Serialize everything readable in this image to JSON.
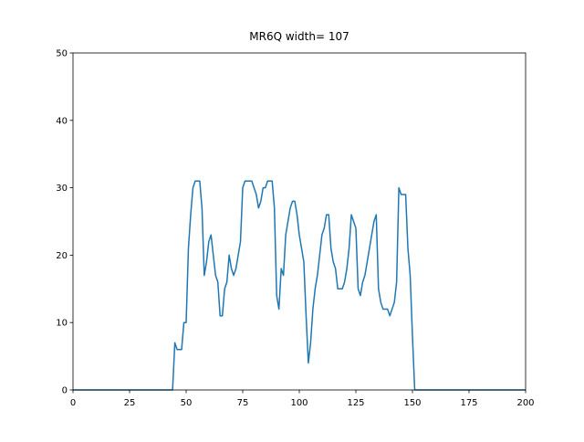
{
  "chart_data": {
    "type": "line",
    "title": "MR6Q width= 107",
    "x": [
      0,
      1,
      2,
      3,
      4,
      5,
      6,
      7,
      8,
      9,
      10,
      11,
      12,
      13,
      14,
      15,
      16,
      17,
      18,
      19,
      20,
      21,
      22,
      23,
      24,
      25,
      26,
      27,
      28,
      29,
      30,
      31,
      32,
      33,
      34,
      35,
      36,
      37,
      38,
      39,
      40,
      41,
      42,
      43,
      44,
      45,
      46,
      47,
      48,
      49,
      50,
      51,
      52,
      53,
      54,
      55,
      56,
      57,
      58,
      59,
      60,
      61,
      62,
      63,
      64,
      65,
      66,
      67,
      68,
      69,
      70,
      71,
      72,
      73,
      74,
      75,
      76,
      77,
      78,
      79,
      80,
      81,
      82,
      83,
      84,
      85,
      86,
      87,
      88,
      89,
      90,
      91,
      92,
      93,
      94,
      95,
      96,
      97,
      98,
      99,
      100,
      101,
      102,
      103,
      104,
      105,
      106,
      107,
      108,
      109,
      110,
      111,
      112,
      113,
      114,
      115,
      116,
      117,
      118,
      119,
      120,
      121,
      122,
      123,
      124,
      125,
      126,
      127,
      128,
      129,
      130,
      131,
      132,
      133,
      134,
      135,
      136,
      137,
      138,
      139,
      140,
      141,
      142,
      143,
      144,
      145,
      146,
      147,
      148,
      149,
      150,
      151,
      152,
      153,
      154,
      155,
      156,
      157,
      158,
      159,
      160,
      161,
      162,
      163,
      164,
      165,
      166,
      167,
      168,
      169,
      170,
      171,
      172,
      173,
      174,
      175,
      176,
      177,
      178,
      179,
      180,
      181,
      182,
      183,
      184,
      185,
      186,
      187,
      188,
      189,
      190,
      191,
      192,
      193,
      194,
      195,
      196,
      197,
      198,
      199,
      200
    ],
    "series": [
      {
        "color": "#1f77b4",
        "values": [
          0,
          0,
          0,
          0,
          0,
          0,
          0,
          0,
          0,
          0,
          0,
          0,
          0,
          0,
          0,
          0,
          0,
          0,
          0,
          0,
          0,
          0,
          0,
          0,
          0,
          0,
          0,
          0,
          0,
          0,
          0,
          0,
          0,
          0,
          0,
          0,
          0,
          0,
          0,
          0,
          0,
          0,
          0,
          0,
          0,
          7,
          6,
          6,
          6,
          10,
          10,
          21,
          26,
          30,
          31,
          31,
          31,
          27,
          17,
          19,
          22,
          23,
          20,
          17,
          16,
          11,
          11,
          15,
          16,
          20,
          18,
          17,
          18,
          20,
          22,
          30,
          31,
          31,
          31,
          31,
          30,
          29,
          27,
          28,
          30,
          30,
          31,
          31,
          31,
          27,
          14,
          12,
          18,
          17,
          23,
          25,
          27,
          28,
          28,
          26,
          23,
          21,
          19,
          11,
          4,
          7,
          12,
          15,
          17,
          20,
          23,
          24,
          26,
          26,
          21,
          19,
          18,
          15,
          15,
          15,
          16,
          18,
          21,
          26,
          25,
          24,
          15,
          14,
          16,
          17,
          19,
          21,
          23,
          25,
          26,
          15,
          13,
          12,
          12,
          12,
          11,
          12,
          13,
          16,
          30,
          29,
          29,
          29,
          21,
          17,
          8,
          0,
          0,
          0,
          0,
          0,
          0,
          0,
          0,
          0,
          0,
          0,
          0,
          0,
          0,
          0,
          0,
          0,
          0,
          0,
          0,
          0,
          0,
          0,
          0,
          0,
          0,
          0,
          0,
          0,
          0,
          0,
          0,
          0,
          0,
          0,
          0,
          0,
          0,
          0,
          0,
          0,
          0,
          0,
          0,
          0,
          0,
          0,
          0,
          0,
          0
        ]
      }
    ],
    "xlim": [
      0,
      200
    ],
    "ylim": [
      0,
      50
    ],
    "xticks": [
      0,
      25,
      50,
      75,
      100,
      125,
      150,
      175,
      200
    ],
    "yticks": [
      0,
      10,
      20,
      30,
      40,
      50
    ]
  }
}
